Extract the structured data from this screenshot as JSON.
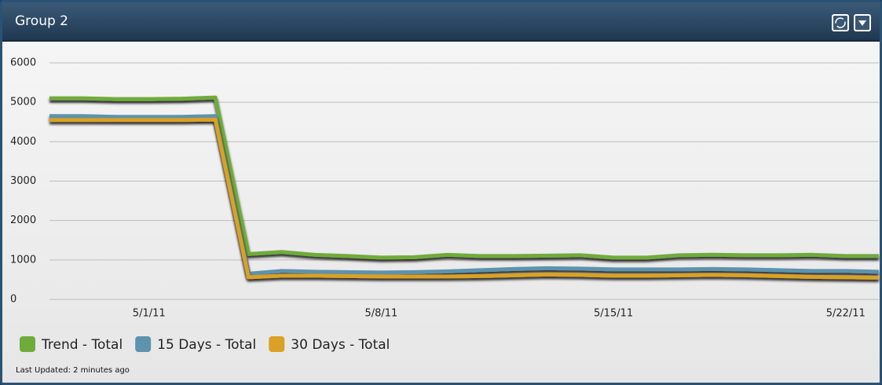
{
  "header": {
    "title": "Group 2"
  },
  "chart_data": {
    "type": "line",
    "x": [
      "4/28/11",
      "4/29/11",
      "4/30/11",
      "5/1/11",
      "5/2/11",
      "5/3/11",
      "5/4/11",
      "5/5/11",
      "5/6/11",
      "5/7/11",
      "5/8/11",
      "5/9/11",
      "5/10/11",
      "5/11/11",
      "5/12/11",
      "5/13/11",
      "5/14/11",
      "5/15/11",
      "5/16/11",
      "5/17/11",
      "5/18/11",
      "5/19/11",
      "5/20/11",
      "5/21/11",
      "5/22/11",
      "5/23/11"
    ],
    "xlim": [
      "4/28/11",
      "5/23/11"
    ],
    "xticks": [
      "5/1/11",
      "5/8/11",
      "5/15/11",
      "5/22/11"
    ],
    "ylim": [
      0,
      6000
    ],
    "yticks": [
      0,
      1000,
      2000,
      3000,
      4000,
      5000,
      6000
    ],
    "grid": true,
    "legend": "bottom",
    "series": [
      {
        "name": "Trend - Total",
        "color": "#6fab3b",
        "values": [
          5100,
          5100,
          5080,
          5080,
          5090,
          5120,
          1150,
          1200,
          1130,
          1100,
          1060,
          1070,
          1130,
          1100,
          1100,
          1110,
          1120,
          1060,
          1060,
          1120,
          1130,
          1120,
          1120,
          1130,
          1100,
          1100
        ]
      },
      {
        "name": "15 Days - Total",
        "color": "#5d93ad",
        "values": [
          4650,
          4650,
          4630,
          4630,
          4630,
          4650,
          650,
          720,
          700,
          690,
          680,
          690,
          710,
          740,
          770,
          790,
          780,
          760,
          760,
          760,
          770,
          760,
          740,
          720,
          720,
          700
        ]
      },
      {
        "name": "30 Days - Total",
        "color": "#d9a126",
        "values": [
          4550,
          4550,
          4550,
          4550,
          4550,
          4560,
          560,
          600,
          600,
          590,
          580,
          580,
          580,
          590,
          610,
          630,
          620,
          600,
          600,
          610,
          620,
          610,
          590,
          570,
          560,
          550
        ]
      }
    ]
  },
  "footer": {
    "text": "Last Updated: 2 minutes ago"
  }
}
